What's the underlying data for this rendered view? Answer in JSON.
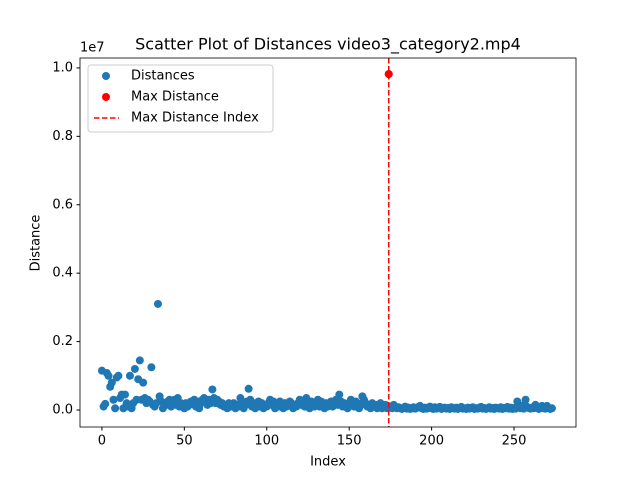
{
  "chart_data": {
    "type": "scatter",
    "title": "Scatter Plot of Distances video3_category2.mp4",
    "x_label": "Index",
    "y_label": "Distance",
    "y_offset_label": "1e7",
    "xlim": [
      -13.3,
      287.6
    ],
    "ylim": [
      -0.0497,
      1.029
    ],
    "xticks": [
      0,
      50,
      100,
      150,
      200,
      250
    ],
    "yticks": [
      {
        "value": 0,
        "label": "0.0"
      },
      {
        "value": 0.2,
        "label": "0.2"
      },
      {
        "value": 0.4,
        "label": "0.4"
      },
      {
        "value": 0.6,
        "label": "0.6"
      },
      {
        "value": 0.8,
        "label": "0.8"
      },
      {
        "value": 1,
        "label": "1.0"
      }
    ],
    "legend": "upper left",
    "series": [
      {
        "name": "Distances",
        "color": "#1f77b4",
        "x": [
          0,
          1,
          2,
          3,
          4,
          5,
          6,
          7,
          8,
          9,
          10,
          11,
          12,
          13,
          14,
          15,
          16,
          17,
          18,
          19,
          20,
          21,
          22,
          23,
          24,
          25,
          26,
          27,
          28,
          29,
          30,
          31,
          32,
          33,
          34,
          35,
          36,
          37,
          38,
          39,
          40,
          41,
          42,
          43,
          44,
          45,
          46,
          47,
          48,
          49,
          50,
          51,
          52,
          53,
          54,
          55,
          56,
          57,
          58,
          59,
          60,
          61,
          62,
          63,
          64,
          65,
          66,
          67,
          68,
          69,
          70,
          71,
          72,
          73,
          74,
          75,
          76,
          77,
          78,
          79,
          80,
          81,
          82,
          83,
          84,
          85,
          86,
          87,
          88,
          89,
          90,
          91,
          92,
          93,
          94,
          95,
          96,
          97,
          98,
          99,
          100,
          101,
          102,
          103,
          104,
          105,
          106,
          107,
          108,
          109,
          110,
          111,
          112,
          113,
          114,
          115,
          116,
          117,
          118,
          119,
          120,
          121,
          122,
          123,
          124,
          125,
          126,
          127,
          128,
          129,
          130,
          131,
          132,
          133,
          134,
          135,
          136,
          137,
          138,
          139,
          140,
          141,
          142,
          143,
          144,
          145,
          146,
          147,
          148,
          149,
          150,
          151,
          152,
          153,
          154,
          155,
          156,
          157,
          158,
          159,
          160,
          161,
          162,
          163,
          164,
          165,
          166,
          167,
          168,
          169,
          170,
          171,
          172,
          173,
          174,
          175,
          176,
          177,
          178,
          179,
          180,
          181,
          182,
          183,
          184,
          185,
          186,
          187,
          188,
          189,
          190,
          191,
          192,
          193,
          194,
          195,
          196,
          197,
          198,
          199,
          200,
          201,
          202,
          203,
          204,
          205,
          206,
          207,
          208,
          209,
          210,
          211,
          212,
          213,
          214,
          215,
          216,
          217,
          218,
          219,
          220,
          221,
          222,
          223,
          224,
          225,
          226,
          227,
          228,
          229,
          230,
          231,
          232,
          233,
          234,
          235,
          236,
          237,
          238,
          239,
          240,
          241,
          242,
          243,
          244,
          245,
          246,
          247,
          248,
          249,
          250,
          251,
          252,
          253,
          254,
          255,
          256,
          257,
          258,
          259,
          260,
          261,
          262,
          263,
          264,
          265,
          266,
          267,
          268,
          269,
          270,
          271,
          272,
          273
        ],
        "values": [
          0.115,
          0.01,
          0.018,
          0.108,
          0.1,
          0.068,
          0.08,
          0.03,
          0.005,
          0.095,
          0.1,
          0.035,
          0.045,
          0.005,
          0.045,
          0.02,
          0.01,
          0.1,
          0.005,
          0.02,
          0.12,
          0.03,
          0.09,
          0.145,
          0.03,
          0.08,
          0.035,
          0.02,
          0.03,
          0.025,
          0.125,
          0.015,
          0.01,
          0.02,
          0.31,
          0.04,
          0.025,
          0.005,
          0.02,
          0.015,
          0.025,
          0.03,
          0.01,
          0.02,
          0.03,
          0.015,
          0.035,
          0.01,
          0.02,
          0.015,
          0.005,
          0.02,
          0.01,
          0.015,
          0.025,
          0.02,
          0.03,
          0.01,
          0.025,
          0.005,
          0.02,
          0.03,
          0.035,
          0.025,
          0.015,
          0.03,
          0.02,
          0.06,
          0.035,
          0.02,
          0.03,
          0.025,
          0.015,
          0.02,
          0.01,
          0.015,
          0.005,
          0.02,
          0.01,
          0.015,
          0.02,
          0.005,
          0.015,
          0.01,
          0.035,
          0.02,
          0.005,
          0.015,
          0.025,
          0.062,
          0.03,
          0.01,
          0.02,
          0.005,
          0.015,
          0.025,
          0.01,
          0.02,
          0.005,
          0.015,
          0.01,
          0.02,
          0.03,
          0.015,
          0.025,
          0.005,
          0.02,
          0.01,
          0.025,
          0.015,
          0.005,
          0.02,
          0.01,
          0.015,
          0.025,
          0.02,
          0.005,
          0.015,
          0.01,
          0.02,
          0.03,
          0.015,
          0.025,
          0.01,
          0.035,
          0.02,
          0.005,
          0.025,
          0.015,
          0.01,
          0.02,
          0.03,
          0.01,
          0.025,
          0.015,
          0.005,
          0.02,
          0.01,
          0.015,
          0.025,
          0.01,
          0.02,
          0.03,
          0.015,
          0.045,
          0.025,
          0.01,
          0.02,
          0.015,
          0.005,
          0.02,
          0.03,
          0.015,
          0.01,
          0.025,
          0.02,
          0.005,
          0.015,
          0.04,
          0.03,
          0.02,
          0.01,
          0.015,
          0.005,
          0.02,
          0.01,
          0.015,
          0.005,
          0.01,
          0.02,
          0.005,
          0.01,
          0.015,
          0.005,
          0.982,
          0.01,
          0.005,
          0.015,
          0.01,
          0.005,
          0.008,
          0.005,
          0.003,
          0.006,
          0.01,
          0.004,
          0.007,
          0.003,
          0.005,
          0.008,
          0.004,
          0.006,
          0.009,
          0.012,
          0.005,
          0.003,
          0.007,
          0.004,
          0.006,
          0.01,
          0.005,
          0.003,
          0.008,
          0.004,
          0.006,
          0.009,
          0.003,
          0.005,
          0.007,
          0.004,
          0.006,
          0.003,
          0.008,
          0.005,
          0.004,
          0.007,
          0.003,
          0.006,
          0.009,
          0.004,
          0.005,
          0.003,
          0.007,
          0.004,
          0.006,
          0.008,
          0.003,
          0.005,
          0.004,
          0.007,
          0.009,
          0.004,
          0.006,
          0.003,
          0.005,
          0.008,
          0.004,
          0.006,
          0.003,
          0.007,
          0.005,
          0.004,
          0.008,
          0.003,
          0.006,
          0.005,
          0.009,
          0.004,
          0.007,
          0.003,
          0.006,
          0.004,
          0.025,
          0.008,
          0.005,
          0.012,
          0.004,
          0.03,
          0.009,
          0.006,
          0.004,
          0.007,
          0.005,
          0.015,
          0.008,
          0.003,
          0.006,
          0.012,
          0.005,
          0.004,
          0.012,
          0.006,
          0.003,
          0.005
        ]
      },
      {
        "name": "Max Distance",
        "color": "#ff0000",
        "x": [
          174
        ],
        "values": [
          0.982
        ]
      }
    ],
    "vline": {
      "name": "Max Distance Index",
      "x": 174,
      "color": "#ff0000"
    }
  }
}
